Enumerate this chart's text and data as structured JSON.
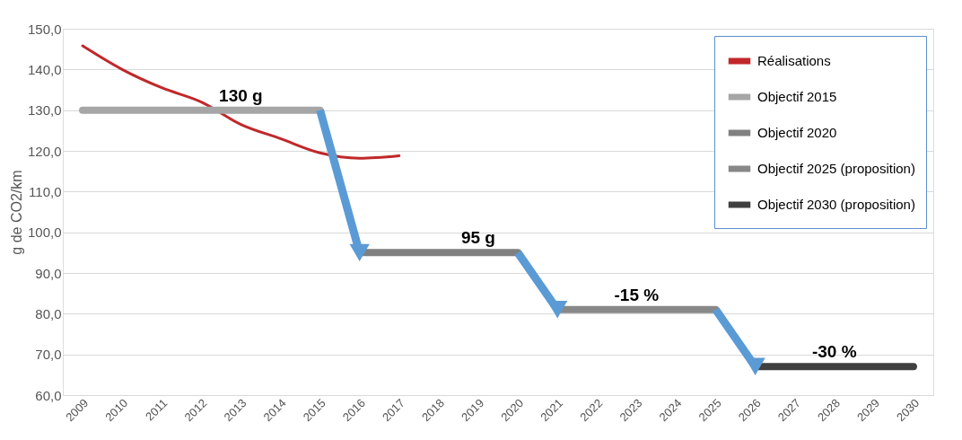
{
  "chart_data": {
    "type": "line",
    "ylabel": "g de CO2/km",
    "categories": [
      "2009",
      "2010",
      "2011",
      "2012",
      "2013",
      "2014",
      "2015",
      "2016",
      "2017",
      "2018",
      "2019",
      "2020",
      "2021",
      "2022",
      "2023",
      "2024",
      "2025",
      "2026",
      "2027",
      "2028",
      "2029",
      "2030"
    ],
    "series": [
      {
        "name": "Réalisations",
        "color": "#c0282a",
        "values": [
          145.8,
          140,
          135.5,
          132,
          126.5,
          123,
          119.5,
          118.2,
          118.8,
          null,
          null,
          null,
          null,
          null,
          null,
          null,
          null,
          null,
          null,
          null,
          null,
          null
        ]
      },
      {
        "name": "Objectif 2015",
        "color": "#a6a6a6",
        "values": [
          130,
          130,
          130,
          130,
          130,
          130,
          130,
          null,
          null,
          null,
          null,
          null,
          null,
          null,
          null,
          null,
          null,
          null,
          null,
          null,
          null,
          null
        ]
      },
      {
        "name": "Objectif 2020",
        "color": "#808080",
        "values": [
          null,
          null,
          null,
          null,
          null,
          null,
          null,
          95,
          95,
          95,
          95,
          95,
          null,
          null,
          null,
          null,
          null,
          null,
          null,
          null,
          null,
          null
        ]
      },
      {
        "name": "Objectif 2025 (proposition)",
        "color": "#888888",
        "values": [
          null,
          null,
          null,
          null,
          null,
          null,
          null,
          null,
          null,
          null,
          null,
          null,
          81,
          81,
          81,
          81,
          81,
          null,
          null,
          null,
          null,
          null
        ]
      },
      {
        "name": "Objectif 2030 (proposition)",
        "color": "#404040",
        "values": [
          null,
          null,
          null,
          null,
          null,
          null,
          null,
          null,
          null,
          null,
          null,
          null,
          null,
          null,
          null,
          null,
          null,
          67,
          67,
          67,
          67,
          67
        ]
      }
    ],
    "ylim": [
      60,
      150
    ],
    "yticks": [
      {
        "value": 60,
        "label": "60,0"
      },
      {
        "value": 70,
        "label": "70,0"
      },
      {
        "value": 80,
        "label": "80,0"
      },
      {
        "value": 90,
        "label": "90,0"
      },
      {
        "value": 100,
        "label": "100,0"
      },
      {
        "value": 110,
        "label": "110,0"
      },
      {
        "value": 120,
        "label": "120,0"
      },
      {
        "value": 130,
        "label": "130,0"
      },
      {
        "value": 140,
        "label": "140,0"
      },
      {
        "value": 150,
        "label": "150,0"
      }
    ],
    "grid": "y",
    "legend": "top right",
    "marker": "none",
    "line_style": "solid",
    "annotations": [
      {
        "text": "130 g",
        "x": "2013",
        "y": 130
      },
      {
        "text": "95 g",
        "x": "2019",
        "y": 95
      },
      {
        "text": "-15 %",
        "x": "2023",
        "y": 81
      },
      {
        "text": "-30 %",
        "x": "2028",
        "y": 67
      }
    ]
  }
}
